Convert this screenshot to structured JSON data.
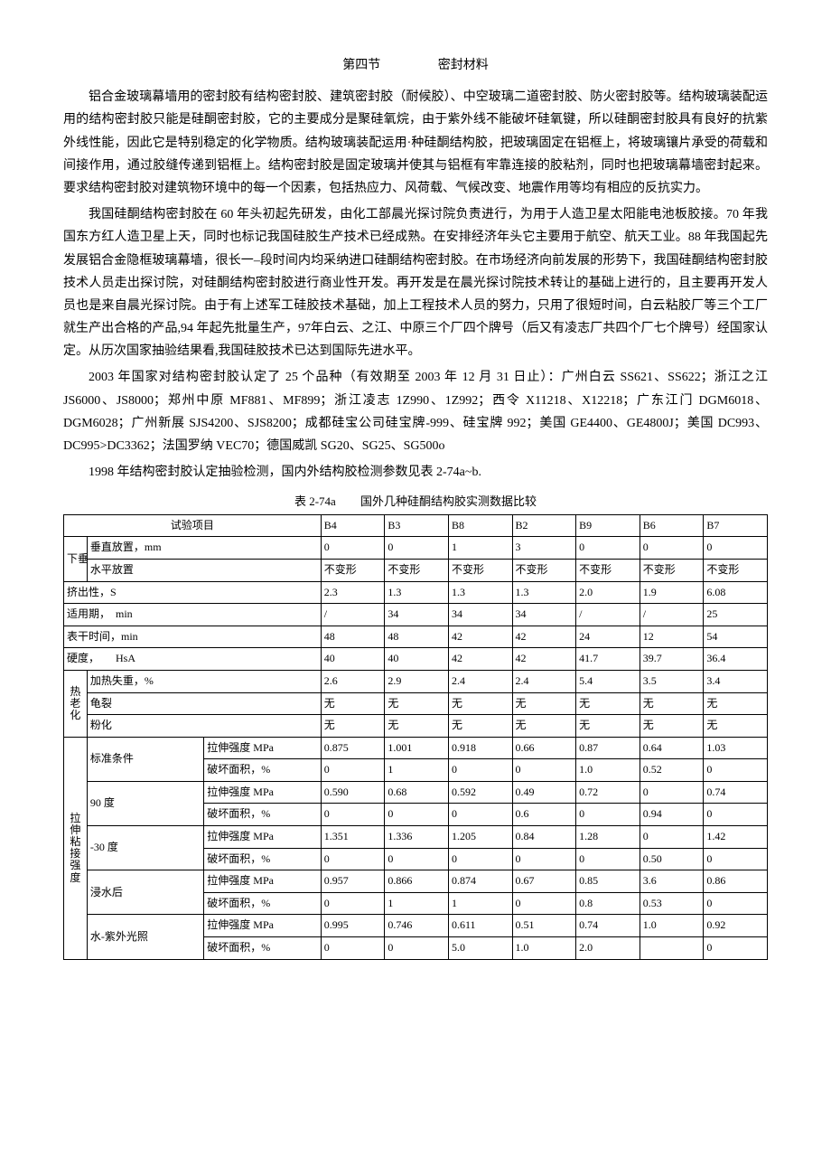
{
  "title": {
    "part1": "第四节",
    "part2": "密封材料"
  },
  "paragraphs": [
    "铝合金玻璃幕墙用的密封胶有结构密封胶、建筑密封胶（耐候胶）、中空玻璃二道密封胶、防火密封胶等。结构玻璃装配运用的结构密封胶只能是硅酮密封胶，它的主要成分是聚硅氧烷，由于紫外线不能破坏硅氧键，所以硅酮密封胶具有良好的抗紫外线性能，因此它是特别稳定的化学物质。结构玻璃装配运用·种硅酮结构胶，把玻璃固定在铝框上，将玻璃镶片承受的荷载和间接作用，通过胶缝传递到铝框上。结构密封胶是固定玻璃并使其与铝框有牢靠连接的胶粘剂，同时也把玻璃幕墙密封起来。要求结构密封胶对建筑物环境中的每一个因素，包括热应力、风荷载、气候改变、地震作用等均有相应的反抗实力。",
    "我国硅酮结构密封胶在 60 年头初起先研发，由化工部晨光探讨院负责进行，为用于人造卫星太阳能电池板胶接。70 年我国东方红人造卫星上天，同时也标记我国硅胶生产技术已经成熟。在安排经济年头它主要用于航空、航天工业。88 年我国起先发展铝合金隐框玻璃幕墙，很长一–段时间内均采纳进口硅酮结构密封胶。在市场经济向前发展的形势下，我国硅酮结构密封胶技术人员走出探讨院，对硅酮结构密封胶进行商业性开发。再开发是在晨光探讨院技术转让的基础上进行的，且主要再开发人员也是来自晨光探讨院。由于有上述军工硅胶技术基础，加上工程技术人员的努力，只用了很短时间，白云粘胶厂等三个工厂就生产出合格的产品,94 年起先批量生产，97年白云、之江、中原三个厂四个牌号（后又有凌志厂共四个厂七个牌号）经国家认定。从历次国家抽验结果看,我国硅胶技术已达到国际先进水平。",
    "2003 年国家对结构密封胶认定了 25 个品种（有效期至 2003 年 12 月 31 日止）：广州白云 SS621、SS622；浙江之江 JS6000、JS8000；郑州中原 MF881、MF899；浙江凌志 1Z990、1Z992；西令 X11218、X12218；广东江门 DGM6018、DGM6028；广州新展 SJS4200、SJS8200；成都硅宝公司硅宝牌-999、硅宝牌 992；美国 GE4400、GE4800J；美国 DC993、DC995>DC3362；法国罗纳 VEC70；德国威凯 SG20、SG25、SG500o",
    "1998 年结构密封胶认定抽验检测，国内外结构胶检测参数见表 2-74a~b."
  ],
  "tableCaption": {
    "a": "表 2-74a",
    "b": "国外几种硅酮结构胶实测数据比较"
  },
  "table": {
    "headerLabel": "试验项目",
    "cols": [
      "B4",
      "B3",
      "B8",
      "B2",
      "B9",
      "B6",
      "B7"
    ],
    "group_sag": {
      "label": "下垂度",
      "rows": [
        {
          "label": "垂直放置，mm",
          "v": [
            "0",
            "0",
            "1",
            "3",
            "0",
            "0",
            "0"
          ]
        },
        {
          "label": "水平放置",
          "v": [
            "不变形",
            "不变形",
            "不变形",
            "不变形",
            "不变形",
            "不变形",
            "不变形"
          ]
        }
      ]
    },
    "simpleRows": [
      {
        "label": "挤出性，S",
        "v": [
          "2.3",
          "1.3",
          "1.3",
          "1.3",
          "2.0",
          "1.9",
          "6.08"
        ]
      },
      {
        "label": "适用期，　min",
        "v": [
          "/",
          "34",
          "34",
          "34",
          "/",
          "/",
          "25"
        ]
      },
      {
        "label": "表干时间，min",
        "v": [
          "48",
          "48",
          "42",
          "42",
          "24",
          "12",
          "54"
        ]
      },
      {
        "label": "硬度，　　HsA",
        "v": [
          "40",
          "40",
          "42",
          "42",
          "41.7",
          "39.7",
          "36.4"
        ]
      }
    ],
    "group_heat": {
      "label": "热老化",
      "rows": [
        {
          "label": "加热失重，%",
          "v": [
            "2.6",
            "2.9",
            "2.4",
            "2.4",
            "5.4",
            "3.5",
            "3.4"
          ]
        },
        {
          "label": "龟裂",
          "v": [
            "无",
            "无",
            "无",
            "无",
            "无",
            "无",
            "无"
          ]
        },
        {
          "label": "粉化",
          "v": [
            "无",
            "无",
            "无",
            "无",
            "无",
            "无",
            "无"
          ]
        }
      ]
    },
    "group_tensile": {
      "label": "拉伸粘接强度",
      "conditions": [
        {
          "cond": "标准条件",
          "metrics": [
            {
              "m": "拉伸强度 MPa",
              "v": [
                "0.875",
                "1.001",
                "0.918",
                "0.66",
                "0.87",
                "0.64",
                "1.03"
              ]
            },
            {
              "m": "破坏面积，%",
              "v": [
                "0",
                "1",
                "0",
                "0",
                "1.0",
                "0.52",
                "0"
              ]
            }
          ]
        },
        {
          "cond": "90 度",
          "metrics": [
            {
              "m": "拉伸强度 MPa",
              "v": [
                "0.590",
                "0.68",
                "0.592",
                "0.49",
                "0.72",
                "0",
                "0.74"
              ]
            },
            {
              "m": "破坏面积，%",
              "v": [
                "0",
                "0",
                "0",
                "0.6",
                "0",
                "0.94",
                "0"
              ]
            }
          ]
        },
        {
          "cond": "-30 度",
          "metrics": [
            {
              "m": "拉伸强度 MPa",
              "v": [
                "1.351",
                "1.336",
                "1.205",
                "0.84",
                "1.28",
                "0",
                "1.42"
              ]
            },
            {
              "m": "破坏面积，%",
              "v": [
                "0",
                "0",
                "0",
                "0",
                "0",
                "0.50",
                "0"
              ]
            }
          ]
        },
        {
          "cond": "浸水后",
          "metrics": [
            {
              "m": "拉伸强度 MPa",
              "v": [
                "0.957",
                "0.866",
                "0.874",
                "0.67",
                "0.85",
                "3.6",
                "0.86"
              ]
            },
            {
              "m": "破坏面积，%",
              "v": [
                "0",
                "1",
                "1",
                "0",
                "0.8",
                "0.53",
                "0"
              ]
            }
          ]
        },
        {
          "cond": "水-紫外光照",
          "metrics": [
            {
              "m": "拉伸强度 MPa",
              "v": [
                "0.995",
                "0.746",
                "0.611",
                "0.51",
                "0.74",
                "1.0",
                "0.92"
              ]
            },
            {
              "m": "破坏面积，%",
              "v": [
                "0",
                "0",
                "5.0",
                "1.0",
                "2.0",
                "",
                "0"
              ]
            }
          ]
        }
      ]
    }
  }
}
